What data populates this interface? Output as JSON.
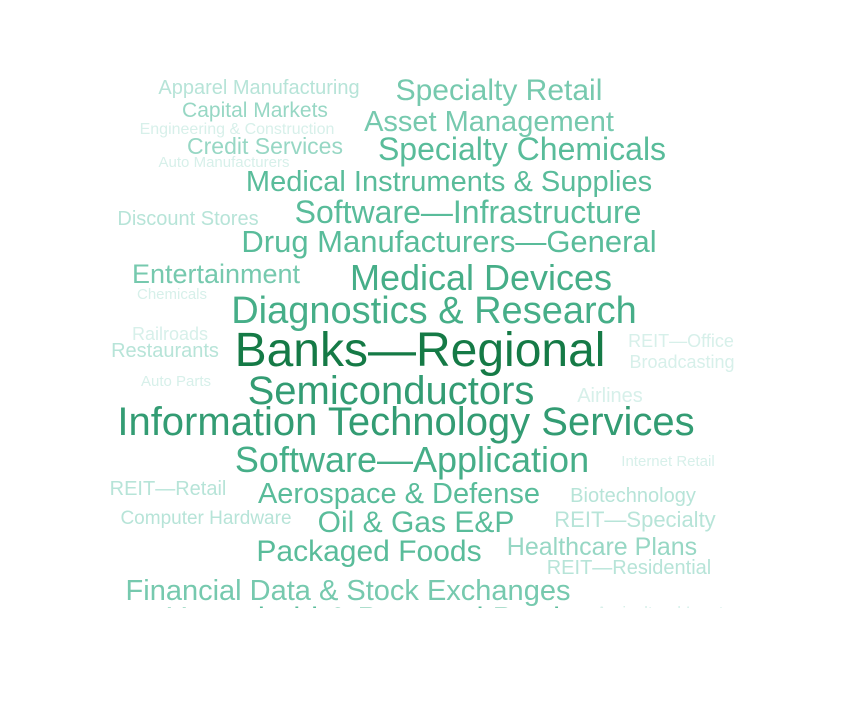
{
  "chart_data": {
    "type": "wordcloud",
    "words": [
      {
        "text": "Apparel Manufacturing",
        "weight": 2
      },
      {
        "text": "Specialty Retail",
        "weight": 4
      },
      {
        "text": "Capital Markets",
        "weight": 3
      },
      {
        "text": "Asset Management",
        "weight": 4
      },
      {
        "text": "Engineering & Construction",
        "weight": 1
      },
      {
        "text": "Credit Services",
        "weight": 3
      },
      {
        "text": "Specialty Chemicals",
        "weight": 5
      },
      {
        "text": "Auto Manufacturers",
        "weight": 1
      },
      {
        "text": "Medical Instruments & Supplies",
        "weight": 5
      },
      {
        "text": "Discount Stores",
        "weight": 2
      },
      {
        "text": "Software—Infrastructure",
        "weight": 5
      },
      {
        "text": "Drug Manufacturers—General",
        "weight": 5
      },
      {
        "text": "Entertainment",
        "weight": 4
      },
      {
        "text": "Medical Devices",
        "weight": 6
      },
      {
        "text": "Chemicals",
        "weight": 1
      },
      {
        "text": "Diagnostics & Research",
        "weight": 6
      },
      {
        "text": "Railroads",
        "weight": 1
      },
      {
        "text": "REIT—Office",
        "weight": 1
      },
      {
        "text": "Restaurants",
        "weight": 2
      },
      {
        "text": "Banks—Regional",
        "weight": 9
      },
      {
        "text": "Broadcasting",
        "weight": 1
      },
      {
        "text": "Auto Parts",
        "weight": 1
      },
      {
        "text": "Semiconductors",
        "weight": 7
      },
      {
        "text": "Airlines",
        "weight": 1
      },
      {
        "text": "Information Technology Services",
        "weight": 7
      },
      {
        "text": "Software—Application",
        "weight": 6
      },
      {
        "text": "Internet Retail",
        "weight": 1
      },
      {
        "text": "REIT—Retail",
        "weight": 2
      },
      {
        "text": "Aerospace & Defense",
        "weight": 5
      },
      {
        "text": "Biotechnology",
        "weight": 2
      },
      {
        "text": "Computer Hardware",
        "weight": 2
      },
      {
        "text": "Oil & Gas E&P",
        "weight": 5
      },
      {
        "text": "REIT—Specialty",
        "weight": 2
      },
      {
        "text": "Packaged Foods",
        "weight": 5
      },
      {
        "text": "Healthcare Plans",
        "weight": 3
      },
      {
        "text": "REIT—Residential",
        "weight": 2
      },
      {
        "text": "Financial Data & Stock Exchanges",
        "weight": 4
      },
      {
        "text": "Household & Personal Products",
        "weight": 5
      },
      {
        "text": "Agricultural Inputs",
        "weight": 1
      }
    ]
  }
}
